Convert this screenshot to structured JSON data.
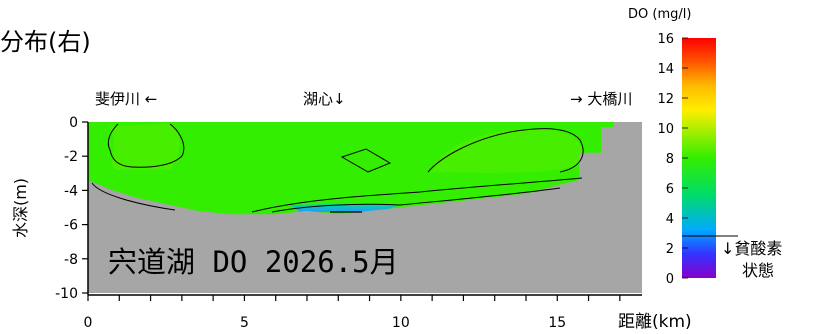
{
  "header": {
    "title_fragment": "分布(右)"
  },
  "chart_data": {
    "type": "heatmap",
    "title": "宍道湖 DO 2026.5月",
    "xlabel": "距離(km)",
    "ylabel": "水深(m)",
    "xlim": [
      0,
      17
    ],
    "ylim": [
      -10,
      0
    ],
    "x_ticks": [
      "0",
      "5",
      "10",
      "15"
    ],
    "y_ticks": [
      "0",
      "-2",
      "-4",
      "-6",
      "-8",
      "-10"
    ],
    "annotations": [
      {
        "text": "斐伊川 ←",
        "x": 2
      },
      {
        "text": "湖心↓",
        "x": 7.8
      },
      {
        "text": "→ 大橋川",
        "x": 15.5
      }
    ],
    "depth_bottom_profile": [
      {
        "x": 0,
        "y": -3.4
      },
      {
        "x": 0.8,
        "y": -4.0
      },
      {
        "x": 1.5,
        "y": -4.4
      },
      {
        "x": 2.5,
        "y": -4.8
      },
      {
        "x": 3.5,
        "y": -5.2
      },
      {
        "x": 4.5,
        "y": -5.4
      },
      {
        "x": 6.0,
        "y": -5.4
      },
      {
        "x": 7.0,
        "y": -5.2
      },
      {
        "x": 8.0,
        "y": -5.4
      },
      {
        "x": 9.0,
        "y": -5.2
      },
      {
        "x": 10.5,
        "y": -4.9
      },
      {
        "x": 12.5,
        "y": -4.5
      },
      {
        "x": 14.0,
        "y": -4.2
      },
      {
        "x": 15.0,
        "y": -3.7
      },
      {
        "x": 15.7,
        "y": -3.4
      },
      {
        "x": 15.7,
        "y": -1.8
      },
      {
        "x": 16.4,
        "y": -1.8
      },
      {
        "x": 16.4,
        "y": -0.3
      },
      {
        "x": 16.8,
        "y": -0.3
      },
      {
        "x": 16.8,
        "y": 0
      },
      {
        "x": 17,
        "y": 0
      }
    ],
    "dominant_do_value": 9,
    "low_do_zone": {
      "x_range": [
        6.0,
        10.0
      ],
      "depth_range": [
        -5.4,
        -4.8
      ],
      "do": 4
    },
    "colorbar": {
      "label": "DO (mg/l)",
      "ticks": [
        "16",
        "14",
        "12",
        "10",
        "8",
        "6",
        "4",
        "2",
        "0"
      ],
      "range": [
        0,
        16
      ],
      "colors": [
        "#8800cc",
        "#3333ff",
        "#00aaff",
        "#00dd66",
        "#55ee00",
        "#bbee00",
        "#ffee00",
        "#ffaa00",
        "#ff3300",
        "#ff0000"
      ],
      "hypoxia_threshold": 3,
      "hypoxia_label_line1": "↓貧酸素",
      "hypoxia_label_line2": "状態"
    }
  }
}
